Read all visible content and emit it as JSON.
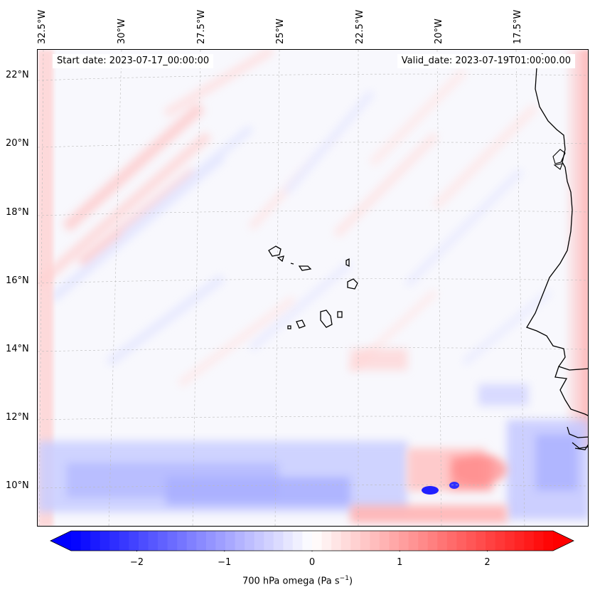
{
  "map": {
    "lon_labels": [
      "32.5°W",
      "30°W",
      "27.5°W",
      "25°W",
      "22.5°W",
      "20°W",
      "17.5°W"
    ],
    "lat_labels": [
      "22°N",
      "20°N",
      "18°N",
      "16°N",
      "14°N",
      "12°N",
      "10°N"
    ],
    "start_date": "Start date: 2023-07-17_00:00:00",
    "valid_date": "Valid_date: 2023-07-19T01:00:00.00",
    "colors": {
      "negative": "#0000ff",
      "positive": "#ff0000",
      "neutral": "#ffffff",
      "coastline": "#000000"
    }
  },
  "colorbar": {
    "ticks": [
      "−2",
      "−1",
      "0",
      "1",
      "2"
    ],
    "tick_values": [
      -2,
      -1,
      0,
      1,
      2
    ],
    "range": [
      -2.75,
      2.75
    ],
    "title": "700 hPa omega (Pa s",
    "title_sup": "−1",
    "title_end": ")",
    "colormap": "bwr",
    "extend": "both"
  }
}
